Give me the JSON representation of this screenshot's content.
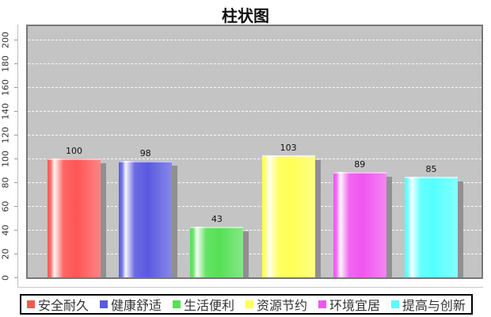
{
  "chart_data": {
    "type": "bar",
    "title": "柱状图",
    "categories": [
      "安全耐久",
      "健康舒适",
      "生活便利",
      "资源节约",
      "环境宜居",
      "提高与创新"
    ],
    "values": [
      100,
      98,
      43,
      103,
      89,
      85
    ],
    "value_labels": [
      "100",
      "98",
      "43",
      "103",
      "89",
      "85"
    ],
    "bar_colors": [
      "#ff5555",
      "#5a5ae0",
      "#55e055",
      "#ffff55",
      "#f055f0",
      "#55ffff"
    ],
    "xlabel": "",
    "ylabel": "",
    "ylim": [
      0,
      200
    ],
    "ytick_step": 20,
    "ytick_labels": [
      "0",
      "20",
      "40",
      "60",
      "80",
      "100",
      "120",
      "140",
      "160",
      "180",
      "200"
    ],
    "grid": "horizontal-dashed-white",
    "legend_position": "bottom",
    "plot_bg_color": "#c4c4c4",
    "shadow_color": "#909090",
    "title_color": "#111111",
    "tick_label_color": "#333333"
  }
}
